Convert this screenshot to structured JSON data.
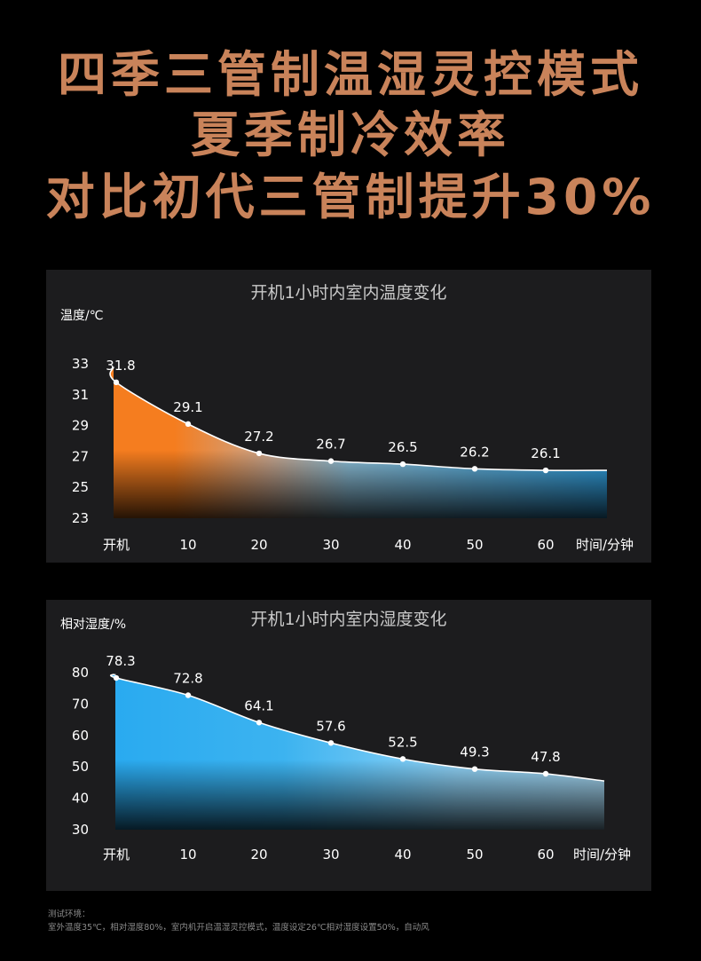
{
  "headline": {
    "line1": "四季三管制温湿灵控模式",
    "line2": "夏季制冷效率",
    "line3": "对比初代三管制提升30%"
  },
  "chart_data": [
    {
      "type": "area",
      "title": "开机1小时内室内温度变化",
      "ylabel": "温度/℃",
      "xlabel": "时间/分钟",
      "categories": [
        "开机",
        "10",
        "20",
        "30",
        "40",
        "50",
        "60"
      ],
      "values": [
        31.8,
        29.1,
        27.2,
        26.7,
        26.5,
        26.2,
        26.1
      ],
      "y_start": 32.8,
      "y_end": 26.1,
      "yticks": [
        "33",
        "31",
        "29",
        "27",
        "25",
        "23"
      ],
      "ylim": [
        23,
        33
      ],
      "colors": [
        "#f57d1f",
        "#33a6e8"
      ]
    },
    {
      "type": "area",
      "title": "开机1小时内室内湿度变化",
      "ylabel": "相对湿度/%",
      "xlabel": "时间/分钟",
      "categories": [
        "开机",
        "10",
        "20",
        "30",
        "40",
        "50",
        "60"
      ],
      "values": [
        78.3,
        72.8,
        64.1,
        57.6,
        52.5,
        49.3,
        47.8
      ],
      "y_start": 79.5,
      "y_end": 45.5,
      "yticks": [
        "80",
        "70",
        "60",
        "50",
        "40",
        "30"
      ],
      "ylim": [
        30,
        80
      ],
      "colors": [
        "#29aaf0",
        "#a8dcf8"
      ]
    }
  ],
  "footnote": {
    "label": "测试环境：",
    "text": "室外温度35℃，相对湿度80%，室内机开启温湿灵控模式，温度设定26℃相对湿度设置50%，自动风"
  }
}
